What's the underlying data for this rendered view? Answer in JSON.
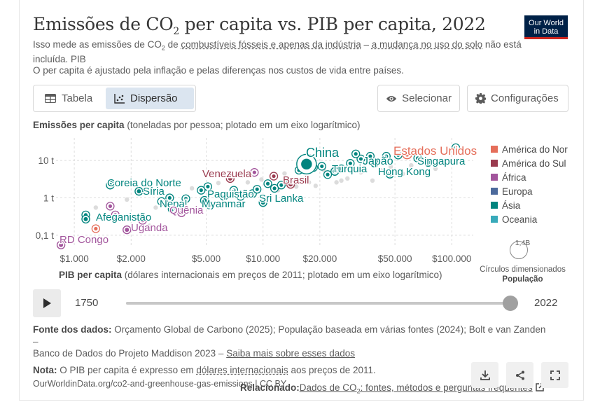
{
  "header": {
    "title_main": "Emissões de CO",
    "title_sub": "2",
    "title_rest": " per capita vs. PIB per capita, 2022",
    "logo_line1": "Our World",
    "logo_line2": "in Data",
    "subtitle_part1": "Isso mede as emissões de CO",
    "subtitle_sub": "2",
    "subtitle_part2": " de ",
    "subtitle_link1": "combustíveis fósseis e apenas da indústria",
    "subtitle_part3": " – ",
    "subtitle_link2": "a mudança no uso do solo",
    "subtitle_part4": " não está incluída. PIB",
    "subtitle_line2": "O per capita é ajustado pela inflação e pelas diferenças nos custos de vida entre países."
  },
  "controls": {
    "tab_table": "Tabela",
    "tab_scatter": "Dispersão",
    "select_label": "Selecionar",
    "settings_label": "Configurações"
  },
  "axes": {
    "y_label_bold": "Emissões per capita",
    "y_label_rest": " (toneladas por pessoa; plotado em um eixo logarítmico)",
    "x_label_bold": "PIB per capita",
    "x_label_rest": " (dólares internacionais em preços de 2011; plotado em um eixo logarítmico)"
  },
  "legend": {
    "items": [
      {
        "label": "América do Norte",
        "color": "#e56e5a"
      },
      {
        "label": "América do Sul",
        "color": "#9a3b4f"
      },
      {
        "label": "África",
        "color": "#a2559c"
      },
      {
        "label": "Europa",
        "color": "#4c6a9c"
      },
      {
        "label": "Ásia",
        "color": "#00847e"
      },
      {
        "label": "Oceania",
        "color": "#38aaba"
      }
    ],
    "size_value": "1,4B",
    "size_title_1": "Círculos dimensionados",
    "size_title_2": "População"
  },
  "timeline": {
    "start_year": "1750",
    "end_year": "2022",
    "progress": 1.0
  },
  "footer": {
    "source_label": "Fonte dos dados:",
    "source_text": " Orçamento Global de Carbono (2025); População baseada em várias fontes (2024); Bolt e van Zanden –",
    "source_text2": "Banco de Dados do Projeto Maddison 2023 – ",
    "source_link": "Saiba mais sobre esses dados",
    "note_label": "Nota:",
    "note_text1": " O PIB per capita é expresso em ",
    "note_link": "dólares internacionais",
    "note_text2": " aos preços de 2011.",
    "url": "OurWorldinData.org/co2-and-greenhouse-gas-emissions | CC BY",
    "related_label": "Relacionado:",
    "related_link_a": "Dados de CO",
    "related_link_sub": "2",
    "related_link_b": ": fontes, métodos e perguntas frequentes"
  },
  "chart_data": {
    "type": "scatter",
    "title": "Emissões de CO₂ per capita vs. PIB per capita, 2022",
    "xlabel": "PIB per capita (dólares internacionais em preços de 2011; plotado em um eixo logarítmico)",
    "ylabel": "Emissões per capita (toneladas por pessoa; plotado em um eixo logarítmico)",
    "x_scale": "log",
    "y_scale": "log",
    "xlim": [
      800,
      130000
    ],
    "ylim": [
      0.05,
      40
    ],
    "x_ticks": [
      1000,
      2000,
      5000,
      10000,
      20000,
      50000,
      100000
    ],
    "x_tick_labels": [
      "$1.000",
      "$2.000",
      "$5.000",
      "$10.000",
      "$20.000",
      "$50.000",
      "$100.000"
    ],
    "y_ticks": [
      0.1,
      1,
      10
    ],
    "y_tick_labels": [
      "0,1 t",
      "1 t",
      "10 t"
    ],
    "grid": true,
    "legend_position": "right",
    "labeled_points": [
      {
        "name": "China",
        "x": 17000,
        "y": 8.0,
        "region": "Ásia",
        "pop": 1.41
      },
      {
        "name": "Estados Unidos",
        "x": 58000,
        "y": 14.9,
        "region": "América do Norte",
        "pop": 0.333
      },
      {
        "name": "Japão",
        "x": 39000,
        "y": 8.5,
        "region": "Ásia",
        "pop": 0.125
      },
      {
        "name": "Singapura",
        "x": 75000,
        "y": 8.9,
        "region": "Ásia",
        "pop": 0.006
      },
      {
        "name": "Turquia",
        "x": 24000,
        "y": 5.1,
        "region": "Ásia",
        "pop": 0.085
      },
      {
        "name": "Hong Kong",
        "x": 47000,
        "y": 4.3,
        "region": "Ásia",
        "pop": 0.007
      },
      {
        "name": "Venezuela",
        "x": 6700,
        "y": 3.3,
        "region": "América do Sul",
        "pop": 0.028
      },
      {
        "name": "Brasil",
        "x": 14000,
        "y": 2.3,
        "region": "América do Sul",
        "pop": 0.215
      },
      {
        "name": "Coreia do Norte",
        "x": 1550,
        "y": 2.2,
        "region": "Ásia",
        "pop": 0.026
      },
      {
        "name": "Síria",
        "x": 2200,
        "y": 1.5,
        "region": "Ásia",
        "pop": 0.022
      },
      {
        "name": "Paquistão",
        "x": 4900,
        "y": 0.85,
        "region": "Ásia",
        "pop": 0.236
      },
      {
        "name": "Nepal",
        "x": 3300,
        "y": 0.5,
        "region": "Ásia",
        "pop": 0.03
      },
      {
        "name": "Quênia",
        "x": 3700,
        "y": 0.4,
        "region": "África",
        "pop": 0.054
      },
      {
        "name": "Myanmar",
        "x": 5200,
        "y": 0.65,
        "region": "Ásia",
        "pop": 0.054
      },
      {
        "name": "Sri Lanka",
        "x": 10000,
        "y": 0.75,
        "region": "Ásia",
        "pop": 0.022
      },
      {
        "name": "Afeganistão",
        "x": 1150,
        "y": 0.27,
        "region": "Ásia",
        "pop": 0.041
      },
      {
        "name": "Uganda",
        "x": 1900,
        "y": 0.14,
        "region": "África",
        "pop": 0.047
      },
      {
        "name": "RD Congo",
        "x": 850,
        "y": 0.055,
        "region": "África",
        "pop": 0.099
      }
    ],
    "other_points": [
      {
        "x": 1150,
        "y": 0.35,
        "region": "Ásia"
      },
      {
        "x": 1550,
        "y": 0.6,
        "region": "África"
      },
      {
        "x": 1650,
        "y": 0.35,
        "region": "África"
      },
      {
        "x": 1300,
        "y": 0.15,
        "region": "América do Norte"
      },
      {
        "x": 2300,
        "y": 0.25,
        "region": "África"
      },
      {
        "x": 2900,
        "y": 0.8,
        "region": "Ásia"
      },
      {
        "x": 3200,
        "y": 1.0,
        "region": "Ásia"
      },
      {
        "x": 3900,
        "y": 0.95,
        "region": "Ásia"
      },
      {
        "x": 4700,
        "y": 1.6,
        "region": "Ásia"
      },
      {
        "x": 5100,
        "y": 2.0,
        "region": "Ásia"
      },
      {
        "x": 6200,
        "y": 1.1,
        "region": "Ásia"
      },
      {
        "x": 7000,
        "y": 1.6,
        "region": "Ásia"
      },
      {
        "x": 7600,
        "y": 1.1,
        "region": "Ásia"
      },
      {
        "x": 8800,
        "y": 1.3,
        "region": "Ásia"
      },
      {
        "x": 9300,
        "y": 1.7,
        "region": "Ásia"
      },
      {
        "x": 10600,
        "y": 2.4,
        "region": "Ásia"
      },
      {
        "x": 11500,
        "y": 1.8,
        "region": "Ásia"
      },
      {
        "x": 12500,
        "y": 2.2,
        "region": "Ásia"
      },
      {
        "x": 13500,
        "y": 2.9,
        "region": "Ásia"
      },
      {
        "x": 9000,
        "y": 4.8,
        "region": "África"
      },
      {
        "x": 11400,
        "y": 3.8,
        "region": "América do Sul"
      },
      {
        "x": 15500,
        "y": 5.5,
        "region": "Ásia"
      },
      {
        "x": 18500,
        "y": 6.5,
        "region": "Ásia"
      },
      {
        "x": 20500,
        "y": 7.0,
        "region": "Ásia"
      },
      {
        "x": 22000,
        "y": 4.2,
        "region": "Ásia"
      },
      {
        "x": 26000,
        "y": 6.0,
        "region": "Ásia"
      },
      {
        "x": 29000,
        "y": 8.4,
        "region": "Ásia"
      },
      {
        "x": 33000,
        "y": 11.0,
        "region": "Ásia"
      },
      {
        "x": 37000,
        "y": 13.0,
        "region": "Ásia"
      },
      {
        "x": 45000,
        "y": 13.0,
        "region": "Ásia"
      },
      {
        "x": 52000,
        "y": 14.0,
        "region": "Ásia"
      },
      {
        "x": 66000,
        "y": 11.5,
        "region": "Ásia"
      },
      {
        "x": 105000,
        "y": 22.0,
        "region": "Ásia"
      },
      {
        "x": 31000,
        "y": 15.0,
        "region": "Ásia"
      }
    ],
    "faded_points": [
      {
        "x": 1300,
        "y": 0.55
      },
      {
        "x": 1900,
        "y": 0.9
      },
      {
        "x": 2500,
        "y": 0.18
      },
      {
        "x": 2700,
        "y": 0.55
      },
      {
        "x": 4200,
        "y": 1.8
      },
      {
        "x": 5800,
        "y": 2.5
      },
      {
        "x": 7800,
        "y": 3.9
      },
      {
        "x": 8300,
        "y": 2.6
      },
      {
        "x": 9800,
        "y": 3.1
      },
      {
        "x": 13000,
        "y": 4.5
      },
      {
        "x": 16000,
        "y": 3.1
      },
      {
        "x": 19000,
        "y": 2.1
      },
      {
        "x": 21000,
        "y": 5.6
      },
      {
        "x": 24500,
        "y": 2.6
      },
      {
        "x": 28000,
        "y": 3.3
      },
      {
        "x": 33000,
        "y": 4.8
      },
      {
        "x": 38000,
        "y": 2.9
      },
      {
        "x": 42000,
        "y": 5.5
      },
      {
        "x": 47500,
        "y": 6.8
      },
      {
        "x": 55000,
        "y": 4.4
      },
      {
        "x": 61000,
        "y": 7.4
      },
      {
        "x": 70000,
        "y": 5.2
      },
      {
        "x": 82000,
        "y": 6.0
      },
      {
        "x": 92000,
        "y": 8.2
      },
      {
        "x": 9900,
        "y": 1.1
      },
      {
        "x": 12000,
        "y": 1.6
      },
      {
        "x": 15000,
        "y": 2.0
      },
      {
        "x": 17500,
        "y": 2.6
      },
      {
        "x": 26000,
        "y": 2.9
      }
    ]
  }
}
